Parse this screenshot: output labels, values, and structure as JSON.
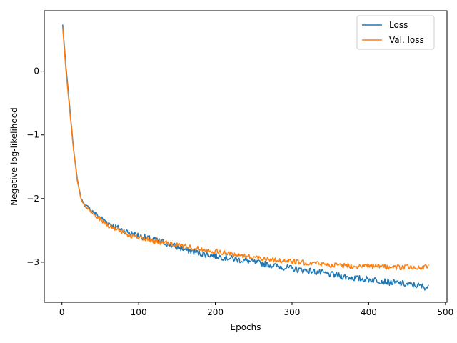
{
  "chart_data": {
    "type": "line",
    "title": "",
    "xlabel": "Epochs",
    "ylabel": "Negative log-likelihood",
    "xlim": [
      -23,
      502
    ],
    "ylim": [
      -3.63,
      0.95
    ],
    "xticks": [
      0,
      100,
      200,
      300,
      400,
      500
    ],
    "yticks": [
      -3,
      -2,
      -1,
      0
    ],
    "grid": false,
    "legend": {
      "placement": "top-right"
    },
    "series": [
      {
        "name": "Loss",
        "color": "#1f77b4",
        "x": [
          1,
          5,
          10,
          15,
          20,
          25,
          30,
          40,
          50,
          60,
          70,
          80,
          90,
          100,
          110,
          120,
          130,
          140,
          150,
          160,
          170,
          180,
          190,
          200,
          210,
          220,
          230,
          240,
          250,
          260,
          270,
          280,
          290,
          300,
          310,
          320,
          330,
          340,
          350,
          360,
          370,
          380,
          390,
          400,
          410,
          420,
          430,
          440,
          450,
          460,
          470,
          478
        ],
        "values": [
          0.73,
          0.1,
          -0.55,
          -1.2,
          -1.7,
          -2.0,
          -2.1,
          -2.2,
          -2.3,
          -2.38,
          -2.45,
          -2.5,
          -2.55,
          -2.58,
          -2.62,
          -2.65,
          -2.68,
          -2.72,
          -2.76,
          -2.8,
          -2.83,
          -2.86,
          -2.88,
          -2.9,
          -2.92,
          -2.94,
          -2.96,
          -2.98,
          -3.0,
          -3.02,
          -3.04,
          -3.06,
          -3.08,
          -3.1,
          -3.12,
          -3.13,
          -3.15,
          -3.17,
          -3.19,
          -3.21,
          -3.23,
          -3.25,
          -3.26,
          -3.27,
          -3.28,
          -3.3,
          -3.32,
          -3.33,
          -3.35,
          -3.36,
          -3.38,
          -3.4
        ],
        "noise": 0.05
      },
      {
        "name": "Val. loss",
        "color": "#ff7f0e",
        "x": [
          1,
          5,
          10,
          15,
          20,
          25,
          30,
          40,
          50,
          60,
          70,
          80,
          90,
          100,
          110,
          120,
          130,
          140,
          150,
          160,
          170,
          180,
          190,
          200,
          210,
          220,
          230,
          240,
          250,
          260,
          270,
          280,
          290,
          300,
          310,
          320,
          330,
          340,
          350,
          360,
          370,
          380,
          390,
          400,
          410,
          420,
          430,
          440,
          450,
          460,
          470,
          478
        ],
        "values": [
          0.68,
          0.05,
          -0.6,
          -1.22,
          -1.72,
          -2.02,
          -2.12,
          -2.23,
          -2.33,
          -2.42,
          -2.48,
          -2.53,
          -2.58,
          -2.61,
          -2.64,
          -2.67,
          -2.69,
          -2.71,
          -2.73,
          -2.75,
          -2.77,
          -2.79,
          -2.81,
          -2.83,
          -2.85,
          -2.87,
          -2.89,
          -2.9,
          -2.92,
          -2.94,
          -2.95,
          -2.97,
          -2.98,
          -2.99,
          -3.0,
          -3.01,
          -3.02,
          -3.03,
          -3.04,
          -3.05,
          -3.05,
          -3.06,
          -3.06,
          -3.07,
          -3.07,
          -3.07,
          -3.08,
          -3.08,
          -3.08,
          -3.08,
          -3.09,
          -3.05
        ],
        "noise": 0.04
      }
    ]
  }
}
